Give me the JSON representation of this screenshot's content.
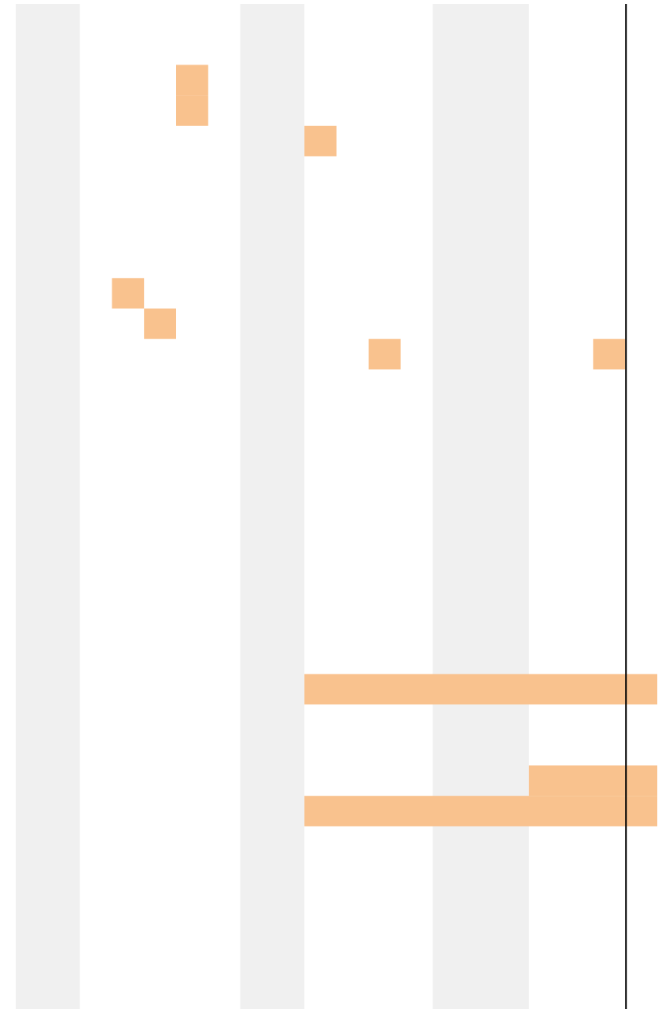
{
  "chart_data": {
    "type": "heatmap",
    "title": "",
    "xlabel": "",
    "ylabel": "",
    "grid": false,
    "legend": "none",
    "num_columns": 20,
    "num_rows": 33,
    "band_columns": [
      [
        0,
        1
      ],
      [
        7,
        8
      ],
      [
        13,
        15
      ]
    ],
    "current_column": 19,
    "cells": [
      {
        "col": 5,
        "row": 2,
        "span": 1
      },
      {
        "col": 5,
        "row": 3,
        "span": 1
      },
      {
        "col": 9,
        "row": 4,
        "span": 1
      },
      {
        "col": 3,
        "row": 9,
        "span": 1
      },
      {
        "col": 4,
        "row": 10,
        "span": 1
      },
      {
        "col": 11,
        "row": 11,
        "span": 1
      },
      {
        "col": 18,
        "row": 11,
        "span": 1
      },
      {
        "col": 9,
        "row": 22,
        "span": 11
      },
      {
        "col": 16,
        "row": 25,
        "span": 4
      },
      {
        "col": 9,
        "row": 26,
        "span": 11
      }
    ]
  },
  "colors": {
    "band": "#f0f0f0",
    "cell": "#f9c28e",
    "current_line": "#000000",
    "background": "#ffffff"
  }
}
